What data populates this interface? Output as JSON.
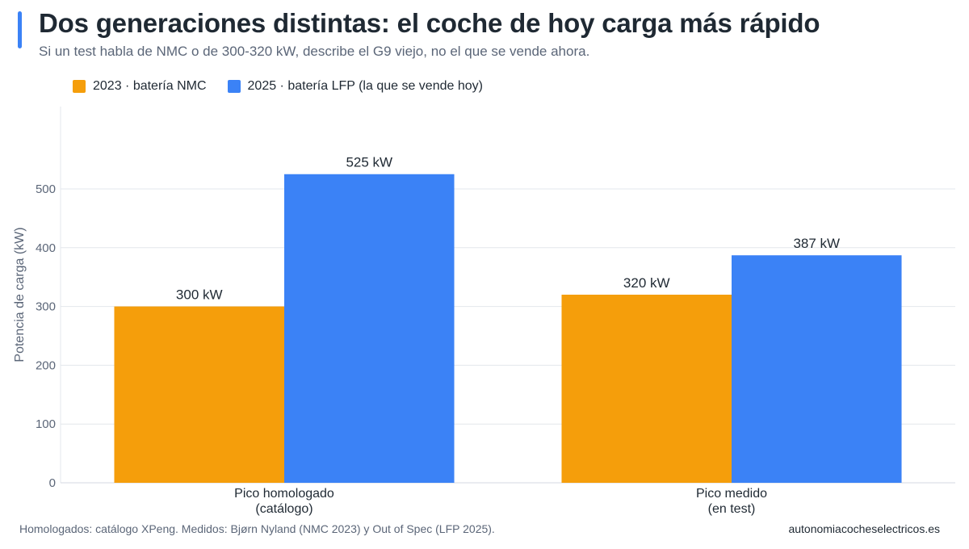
{
  "header": {
    "title": "Dos generaciones distintas: el coche de hoy carga más rápido",
    "subtitle": "Si un test habla de NMC o de 300-320 kW, describe el G9 viejo, no el que se vende ahora."
  },
  "legend": {
    "items": [
      {
        "label": "2023 · batería NMC",
        "color": "#f59e0b"
      },
      {
        "label": "2025 · batería LFP (la que se vende hoy)",
        "color": "#3b82f6"
      }
    ]
  },
  "chart_data": {
    "type": "bar",
    "title": "Dos generaciones distintas: el coche de hoy carga más rápido",
    "subtitle": "Si un test habla de NMC o de 300-320 kW, describe el G9 viejo, no el que se vende ahora.",
    "categories": [
      [
        "Pico homologado",
        "(catálogo)"
      ],
      [
        "Pico medido",
        "(en test)"
      ]
    ],
    "series": [
      {
        "name": "2023 · batería NMC",
        "values": [
          300,
          320
        ],
        "color": "#f59e0b",
        "labels": [
          "300 kW",
          "320 kW"
        ]
      },
      {
        "name": "2025 · batería LFP (la que se vende hoy)",
        "values": [
          525,
          387
        ],
        "color": "#3b82f6",
        "labels": [
          "525 kW",
          "387 kW"
        ]
      }
    ],
    "xlabel": "",
    "ylabel": "Potencia de carga (kW)",
    "ylim": [
      0,
      640
    ],
    "yticks": [
      0,
      100,
      200,
      300,
      400,
      500
    ],
    "grid": true,
    "legend_position": "top-left"
  },
  "footer": {
    "source": "Homologados: catálogo XPeng. Medidos: Bjørn Nyland (NMC 2023) y Out of Spec (LFP 2025).",
    "brand": "autonomiacocheselectricos.es"
  }
}
